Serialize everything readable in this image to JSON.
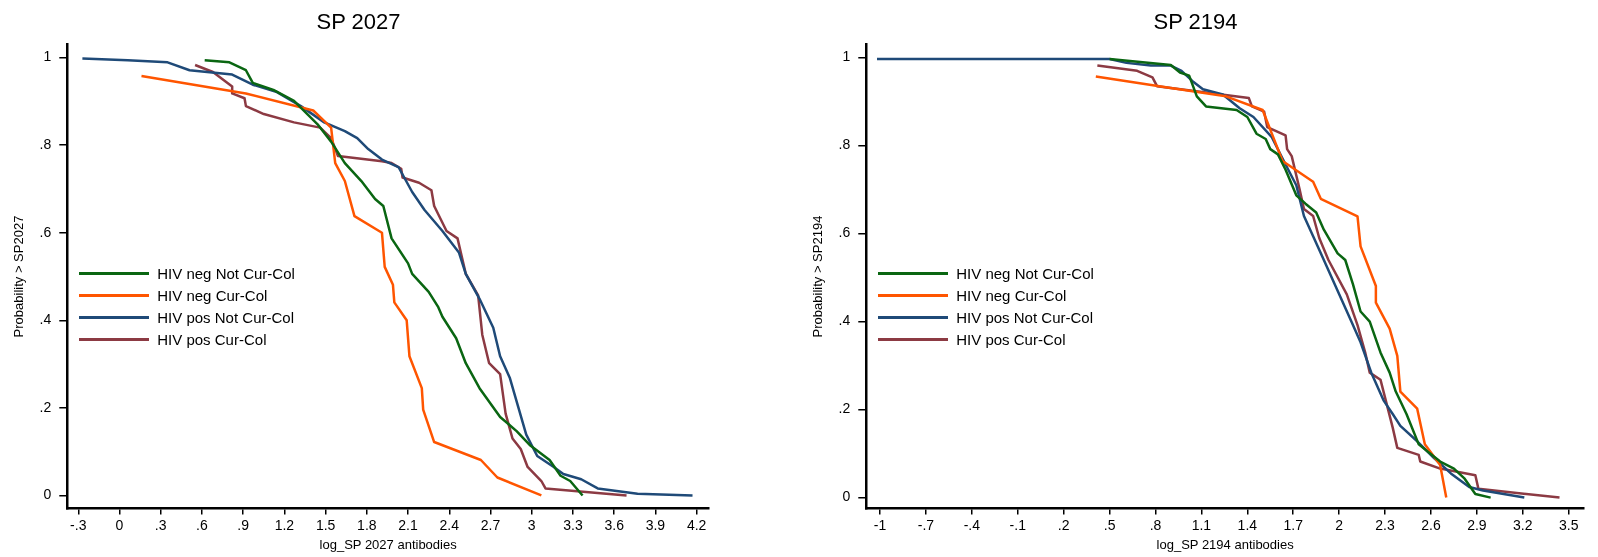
{
  "chart_data": [
    {
      "type": "line",
      "title": "SP 2027",
      "xlabel": "log_SP 2027 antibodies",
      "ylabel": "Probability > SP2027",
      "xlim": [
        -0.38,
        4.29
      ],
      "ylim": [
        -0.03,
        1.03
      ],
      "xticks": [
        {
          "value": -0.3,
          "label": "-.3"
        },
        0,
        {
          "value": 0.3,
          "label": ".3"
        },
        {
          "value": 0.6,
          "label": ".6"
        },
        {
          "value": 0.9,
          "label": ".9"
        },
        1.2,
        1.5,
        1.8,
        2.1,
        2.4,
        2.7,
        3,
        3.3,
        3.6,
        3.9,
        4.2
      ],
      "yticks": [
        {
          "value": 0,
          "label": "0"
        },
        {
          "value": 0.2,
          "label": ".2"
        },
        {
          "value": 0.4,
          "label": ".4"
        },
        {
          "value": 0.6,
          "label": ".6"
        },
        {
          "value": 0.8,
          "label": ".8"
        },
        {
          "value": 1,
          "label": "1"
        }
      ],
      "grid": false,
      "legend": "left",
      "series": [
        {
          "name": "HIV neg Not Cur-Col",
          "color": "#0a6612",
          "x": [
            0.62,
            0.8,
            0.92,
            0.97,
            1.12,
            1.27,
            1.44,
            1.54,
            1.64,
            1.76,
            1.86,
            1.92,
            1.98,
            2.1,
            2.13,
            2.25,
            2.32,
            2.35,
            2.45,
            2.52,
            2.62,
            2.77,
            2.89,
            2.99,
            3.13,
            3.21,
            3.28,
            3.37
          ],
          "values": [
            0.994,
            0.989,
            0.971,
            0.942,
            0.926,
            0.901,
            0.848,
            0.808,
            0.759,
            0.718,
            0.677,
            0.661,
            0.587,
            0.53,
            0.506,
            0.465,
            0.43,
            0.408,
            0.359,
            0.302,
            0.245,
            0.179,
            0.147,
            0.114,
            0.081,
            0.045,
            0.033,
            0
          ]
        },
        {
          "name": "HIV neg Cur-Col",
          "color": "#ff5500",
          "x": [
            0.16,
            0.92,
            1.41,
            1.54,
            1.57,
            1.64,
            1.71,
            1.91,
            1.93,
            1.99,
            2.0,
            2.09,
            2.11,
            2.2,
            2.21,
            2.29,
            2.63,
            2.75,
            3.07
          ],
          "values": [
            0.958,
            0.918,
            0.879,
            0.84,
            0.759,
            0.718,
            0.638,
            0.6,
            0.522,
            0.481,
            0.441,
            0.4,
            0.318,
            0.245,
            0.196,
            0.122,
            0.081,
            0.041,
            0
          ]
        },
        {
          "name": "HIV pos Not Cur-Col",
          "color": "#1f4a78",
          "x": [
            -0.27,
            0.06,
            0.35,
            0.51,
            0.82,
            0.97,
            1.14,
            1.32,
            1.49,
            1.64,
            1.73,
            1.81,
            1.91,
            2.03,
            2.13,
            2.22,
            2.35,
            2.47,
            2.52,
            2.62,
            2.72,
            2.77,
            2.84,
            2.9,
            2.96,
            3.04,
            3.16,
            3.23,
            3.36,
            3.48,
            3.77,
            4.17
          ],
          "values": [
            0.998,
            0.994,
            0.989,
            0.971,
            0.961,
            0.938,
            0.922,
            0.889,
            0.852,
            0.832,
            0.816,
            0.791,
            0.767,
            0.75,
            0.693,
            0.652,
            0.604,
            0.555,
            0.506,
            0.449,
            0.383,
            0.318,
            0.269,
            0.204,
            0.139,
            0.09,
            0.065,
            0.049,
            0.037,
            0.016,
            0.004,
            0
          ]
        },
        {
          "name": "HIV pos Cur-Col",
          "color": "#8c3a43",
          "x": [
            0.55,
            0.68,
            0.82,
            0.82,
            0.91,
            0.92,
            1.05,
            1.27,
            1.46,
            1.54,
            1.59,
            1.91,
            1.98,
            2.05,
            2.06,
            2.18,
            2.27,
            2.29,
            2.38,
            2.46,
            2.52,
            2.61,
            2.64,
            2.69,
            2.77,
            2.81,
            2.86,
            2.92,
            2.97,
            3.07,
            3.1,
            3.69
          ],
          "values": [
            0.983,
            0.967,
            0.934,
            0.918,
            0.907,
            0.889,
            0.871,
            0.852,
            0.84,
            0.816,
            0.775,
            0.763,
            0.759,
            0.746,
            0.726,
            0.714,
            0.697,
            0.661,
            0.604,
            0.587,
            0.506,
            0.457,
            0.367,
            0.302,
            0.277,
            0.187,
            0.13,
            0.106,
            0.065,
            0.033,
            0.016,
            0
          ]
        }
      ]
    },
    {
      "type": "line",
      "title": "SP 2194",
      "xlabel": "log_SP 2194 antibodies",
      "ylabel": "Probability > SP2194",
      "xlim": [
        -1.09,
        3.6
      ],
      "ylim": [
        -0.025,
        1.03
      ],
      "xticks": [
        -1,
        {
          "value": -0.7,
          "label": "-.7"
        },
        {
          "value": -0.4,
          "label": "-.4"
        },
        {
          "value": -0.1,
          "label": "-.1"
        },
        {
          "value": 0.2,
          "label": ".2"
        },
        {
          "value": 0.5,
          "label": ".5"
        },
        {
          "value": 0.8,
          "label": ".8"
        },
        1.1,
        1.4,
        1.7,
        2,
        2.3,
        2.6,
        2.9,
        3.2,
        3.5
      ],
      "yticks": [
        {
          "value": 0,
          "label": "0"
        },
        {
          "value": 0.2,
          "label": ".2"
        },
        {
          "value": 0.4,
          "label": ".4"
        },
        {
          "value": 0.6,
          "label": ".6"
        },
        {
          "value": 0.8,
          "label": ".8"
        },
        {
          "value": 1,
          "label": "1"
        }
      ],
      "grid": false,
      "legend": "left",
      "series": [
        {
          "name": "HIV neg Not Cur-Col",
          "color": "#0a6612",
          "x": [
            0.5,
            0.9,
            0.96,
            1.02,
            1.07,
            1.13,
            1.33,
            1.4,
            1.46,
            1.52,
            1.55,
            1.6,
            1.65,
            1.72,
            1.78,
            1.85,
            1.9,
            1.99,
            2.04,
            2.09,
            2.14,
            2.2,
            2.27,
            2.33,
            2.37,
            2.44,
            2.52,
            2.66,
            2.75,
            2.82,
            2.89,
            2.99
          ],
          "values": [
            0.997,
            0.983,
            0.966,
            0.959,
            0.912,
            0.889,
            0.881,
            0.865,
            0.827,
            0.815,
            0.792,
            0.78,
            0.745,
            0.687,
            0.668,
            0.648,
            0.609,
            0.555,
            0.54,
            0.485,
            0.423,
            0.4,
            0.33,
            0.284,
            0.241,
            0.19,
            0.121,
            0.082,
            0.066,
            0.043,
            0.008,
            0
          ]
        },
        {
          "name": "HIV neg Cur-Col",
          "color": "#ff5500",
          "x": [
            0.41,
            0.9,
            1.26,
            1.5,
            1.63,
            1.83,
            1.88,
            2.12,
            2.14,
            2.24,
            2.24,
            2.33,
            2.38,
            2.4,
            2.51,
            2.56,
            2.66,
            2.7
          ],
          "values": [
            0.957,
            0.931,
            0.912,
            0.881,
            0.765,
            0.718,
            0.679,
            0.639,
            0.571,
            0.481,
            0.443,
            0.384,
            0.322,
            0.241,
            0.202,
            0.121,
            0.074,
            0
          ]
        },
        {
          "name": "HIV pos Not Cur-Col",
          "color": "#1f4a78",
          "x": [
            -1.02,
            0.5,
            0.61,
            0.77,
            0.9,
            0.97,
            1.04,
            1.11,
            1.24,
            1.35,
            1.44,
            1.56,
            1.65,
            1.72,
            1.77,
            1.83,
            1.9,
            1.99,
            2.08,
            2.14,
            2.21,
            2.29,
            2.35,
            2.4,
            2.51,
            2.62,
            2.73,
            2.85,
            2.94,
            3.21
          ],
          "values": [
            0.997,
            0.997,
            0.988,
            0.982,
            0.982,
            0.97,
            0.947,
            0.928,
            0.916,
            0.885,
            0.865,
            0.819,
            0.757,
            0.71,
            0.64,
            0.594,
            0.54,
            0.47,
            0.4,
            0.353,
            0.284,
            0.221,
            0.19,
            0.163,
            0.128,
            0.09,
            0.055,
            0.024,
            0.016,
            0
          ]
        },
        {
          "name": "HIV pos Cur-Col",
          "color": "#8c3a43",
          "x": [
            0.42,
            0.68,
            0.78,
            0.81,
            0.9,
            1.41,
            1.43,
            1.51,
            1.53,
            1.65,
            1.66,
            1.69,
            1.74,
            1.77,
            1.83,
            1.87,
            1.93,
            2.05,
            2.12,
            2.17,
            2.2,
            2.27,
            2.35,
            2.38,
            2.52,
            2.53,
            2.66,
            2.89,
            2.91,
            3.44
          ],
          "values": [
            0.982,
            0.97,
            0.955,
            0.935,
            0.931,
            0.908,
            0.889,
            0.877,
            0.842,
            0.823,
            0.792,
            0.776,
            0.703,
            0.656,
            0.64,
            0.59,
            0.54,
            0.462,
            0.392,
            0.33,
            0.284,
            0.268,
            0.159,
            0.113,
            0.097,
            0.082,
            0.066,
            0.051,
            0.02,
            0
          ]
        }
      ]
    }
  ]
}
